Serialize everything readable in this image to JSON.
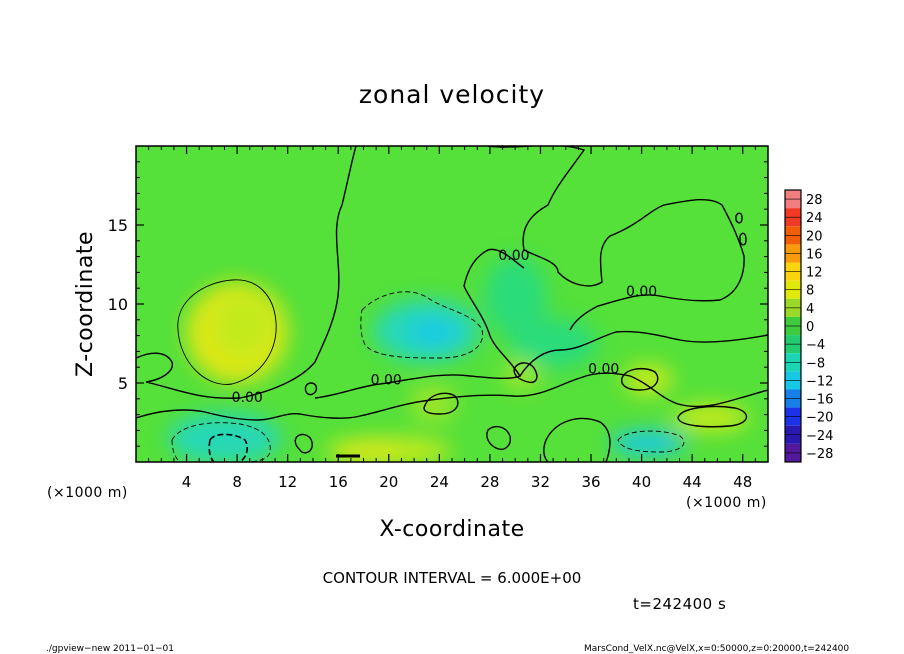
{
  "chart_data": {
    "type": "heatmap",
    "title": "zonal velocity",
    "xlabel": "X-coordinate",
    "ylabel": "Z-coordinate",
    "x_unit": "(×1000 m)",
    "y_unit": "(×1000 m)",
    "xlim": [
      0,
      50
    ],
    "ylim": [
      0,
      20
    ],
    "x_ticks": [
      4,
      8,
      12,
      16,
      20,
      24,
      28,
      32,
      36,
      40,
      44,
      48
    ],
    "y_ticks": [
      5,
      10,
      15
    ],
    "contour_interval": "CONTOUR INTERVAL = 6.000E+00",
    "time": "t=242400 s",
    "contour_labels": [
      {
        "text": "0.00",
        "x": 8.8,
        "z": 3.8
      },
      {
        "text": "0.00",
        "x": 19.8,
        "z": 4.9
      },
      {
        "text": "0.00",
        "x": 29.9,
        "z": 12.8
      },
      {
        "text": "0.00",
        "x": 40.0,
        "z": 10.5
      },
      {
        "text": "0.00",
        "x": 37.0,
        "z": 5.6
      }
    ],
    "colorbar": {
      "levels": [
        28,
        24,
        20,
        16,
        12,
        8,
        4,
        0,
        -4,
        -8,
        -12,
        -16,
        -20,
        -24,
        -28
      ],
      "labels": [
        "28",
        "24",
        "20",
        "16",
        "12",
        "8",
        "4",
        "0",
        "−4",
        "−8",
        "−12",
        "−16",
        "−20",
        "−24",
        "−28"
      ],
      "colors": [
        "#f27e80",
        "#f03a26",
        "#f35d08",
        "#f99a0d",
        "#fbd410",
        "#e1e90c",
        "#9ad928",
        "#3ecc3e",
        "#24cc70",
        "#1ad6b3",
        "#16c8e4",
        "#1680e8",
        "#1b32e8",
        "#2a18b2",
        "#54189c"
      ]
    },
    "field_colors": {
      "base": "#55e03a",
      "weak_positive": "#9be62c",
      "positive": "#c3ea1e",
      "strong_positive": "#dfe712",
      "weak_negative": "#2bdc7a",
      "negative": "#25d8b6",
      "strong_negative": "#1ecbe2"
    },
    "anomalies": [
      {
        "kind": "strong_positive",
        "x": 8,
        "z": 8.2,
        "rx": 4.0,
        "rz": 3.2
      },
      {
        "kind": "positive",
        "x": 8.4,
        "z": 8.6,
        "rx": 2.4,
        "rz": 2.0
      },
      {
        "kind": "negative",
        "x": 23,
        "z": 8.3,
        "rx": 4.2,
        "rz": 2.0
      },
      {
        "kind": "strong_negative",
        "x": 23.5,
        "z": 8.2,
        "rx": 2.0,
        "rz": 1.0
      },
      {
        "kind": "strong_negative",
        "x": 7,
        "z": 1.2,
        "rx": 2.8,
        "rz": 1.0
      },
      {
        "kind": "negative",
        "x": 7,
        "z": 1.5,
        "rx": 4.5,
        "rz": 1.6
      },
      {
        "kind": "positive",
        "x": 20,
        "z": 0.7,
        "rx": 5.0,
        "rz": 0.9
      },
      {
        "kind": "strong_positive",
        "x": 18,
        "z": 0.5,
        "rx": 2.5,
        "rz": 0.6
      },
      {
        "kind": "positive",
        "x": 40.5,
        "z": 5.2,
        "rx": 2.0,
        "rz": 1.0
      },
      {
        "kind": "positive",
        "x": 45.5,
        "z": 2.8,
        "rx": 3.0,
        "rz": 0.9
      },
      {
        "kind": "strong_negative",
        "x": 40.5,
        "z": 1.2,
        "rx": 3.0,
        "rz": 0.8
      },
      {
        "kind": "weak_negative",
        "x": 30,
        "z": 10.5,
        "rx": 2.5,
        "rz": 2.5
      },
      {
        "kind": "weak_negative",
        "x": 33,
        "z": 7.5,
        "rx": 3.5,
        "rz": 1.6
      },
      {
        "kind": "weak_positive",
        "x": 23.5,
        "z": 3.7,
        "rx": 1.8,
        "rz": 1.2
      },
      {
        "kind": "weak_positive",
        "x": 30.5,
        "z": 5.5,
        "rx": 1.5,
        "rz": 1.0
      }
    ]
  },
  "footer": {
    "left": "./gpview−new   2011−01−01",
    "right": "MarsCond_VelX.nc@VelX,x=0:50000,z=0:20000,t=242400"
  }
}
